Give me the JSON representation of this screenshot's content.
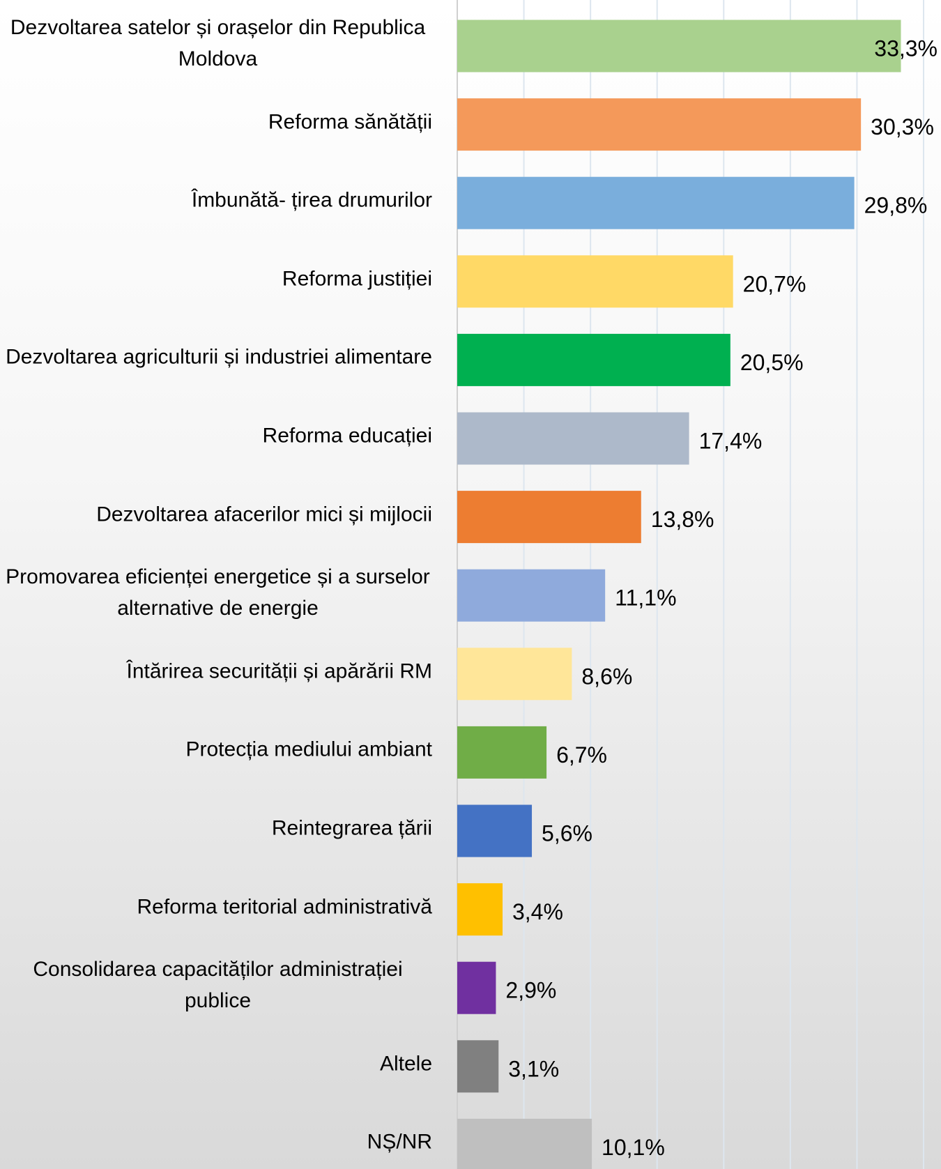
{
  "chart_data": {
    "type": "bar",
    "orientation": "horizontal",
    "categories": [
      "Dezvoltarea satelor și orașelor din Republica Moldova",
      "Reforma sănătății",
      "Îmbunătă- țirea drumurilor",
      "Reforma justiției",
      "Dezvoltarea agriculturii și industriei alimentare",
      "Reforma educației",
      "Dezvoltarea afacerilor mici și mijlocii",
      "Promovarea eficienței energetice și a surselor alternative de energie",
      "Întărirea securității și apărării RM",
      "Protecția mediului ambiant",
      "Reintegrarea țării",
      "Reforma teritorial administrativă",
      "Consolidarea capacităților administrației publice",
      "Altele",
      "NȘ/NR"
    ],
    "values": [
      33.3,
      30.3,
      29.8,
      20.7,
      20.5,
      17.4,
      13.8,
      11.1,
      8.6,
      6.7,
      5.6,
      3.4,
      2.9,
      3.1,
      10.1
    ],
    "value_labels": [
      "33,3%",
      "30,3%",
      "29,8%",
      "20,7%",
      "20,5%",
      "17,4%",
      "13,8%",
      "11,1%",
      "8,6%",
      "6,7%",
      "5,6%",
      "3,4%",
      "2,9%",
      "3,1%",
      "10,1%"
    ],
    "colors": [
      "#a9d18e",
      "#f4995a",
      "#7aaedc",
      "#ffd966",
      "#00b050",
      "#adb9ca",
      "#ed7d31",
      "#8faadc",
      "#ffe699",
      "#70ad47",
      "#4472c4",
      "#ffc000",
      "#7030a0",
      "#808080",
      "#bfbfbf"
    ],
    "xlim": [
      0,
      35
    ],
    "xticks": [
      0,
      5,
      10,
      15,
      20,
      25,
      30,
      35
    ],
    "grid": true
  }
}
